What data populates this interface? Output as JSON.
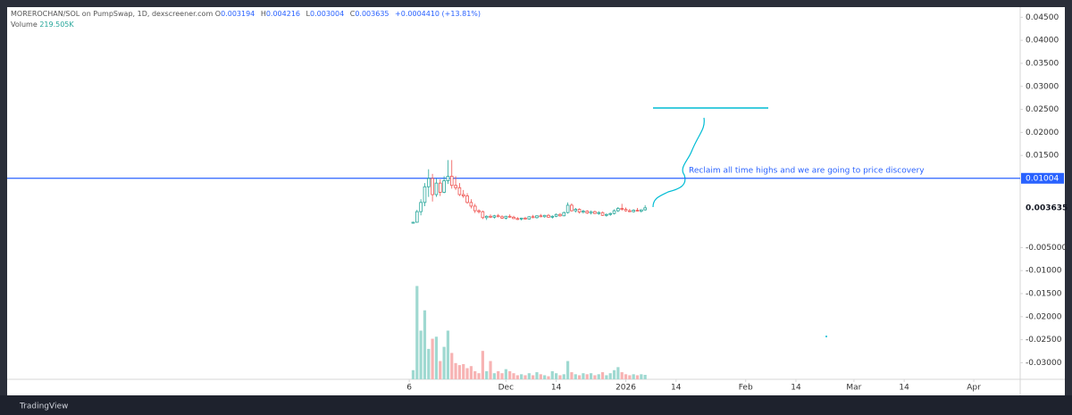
{
  "chart_data": {
    "type": "candlestick",
    "symbol": "MOREROCHAN/SOL on PumpSwap, 1D, dexscreener.com",
    "ohlc_letters": [
      "O",
      "H",
      "L",
      "C"
    ],
    "change": "+0.0004410 (+13.81%)",
    "x": [
      1,
      2,
      3,
      4,
      5,
      6,
      7,
      8,
      9,
      10,
      11,
      12,
      13,
      14,
      15,
      16,
      17,
      18,
      19,
      20,
      21,
      22,
      23,
      24,
      25,
      26,
      27,
      28,
      29,
      30,
      31,
      32,
      33,
      34,
      35,
      36,
      37,
      38,
      39,
      40,
      41,
      42,
      43,
      44,
      45,
      46,
      47,
      48,
      49,
      50,
      51,
      52,
      53,
      54,
      55,
      56,
      57,
      58,
      59,
      60,
      61
    ],
    "open": [
      0.0003,
      0.0005,
      0.0028,
      0.0048,
      0.0082,
      0.01,
      0.0065,
      0.009,
      0.007,
      0.0095,
      0.0105,
      0.0085,
      0.008,
      0.0065,
      0.0062,
      0.0048,
      0.004,
      0.003,
      0.0028,
      0.0015,
      0.0018,
      0.0016,
      0.0019,
      0.0017,
      0.0014,
      0.0018,
      0.0016,
      0.0013,
      0.0012,
      0.0014,
      0.0012,
      0.0017,
      0.0015,
      0.0019,
      0.0017,
      0.002,
      0.0016,
      0.0018,
      0.0022,
      0.0019,
      0.0026,
      0.0042,
      0.003,
      0.0033,
      0.0027,
      0.0029,
      0.0025,
      0.0028,
      0.0024,
      0.0026,
      0.002,
      0.0022,
      0.0024,
      0.003,
      0.0035,
      0.0033,
      0.003,
      0.0028,
      0.0031,
      0.0029,
      0.003194
    ],
    "high": [
      0.0006,
      0.0032,
      0.0055,
      0.009,
      0.012,
      0.011,
      0.01,
      0.0098,
      0.0105,
      0.014,
      0.014,
      0.0105,
      0.009,
      0.0075,
      0.0068,
      0.0055,
      0.0045,
      0.0033,
      0.003,
      0.002,
      0.0022,
      0.0021,
      0.0023,
      0.002,
      0.0019,
      0.0022,
      0.0019,
      0.0016,
      0.0015,
      0.0017,
      0.0018,
      0.0021,
      0.002,
      0.0023,
      0.0021,
      0.0023,
      0.002,
      0.0024,
      0.0025,
      0.0028,
      0.0048,
      0.0046,
      0.0036,
      0.0035,
      0.0032,
      0.0031,
      0.003,
      0.003,
      0.0029,
      0.0028,
      0.0024,
      0.0026,
      0.0033,
      0.0038,
      0.0045,
      0.0037,
      0.0034,
      0.0033,
      0.0036,
      0.0033,
      0.004216
    ],
    "low": [
      0.0002,
      0.0004,
      0.002,
      0.004,
      0.006,
      0.005,
      0.006,
      0.0062,
      0.0068,
      0.0088,
      0.0078,
      0.0075,
      0.0062,
      0.0058,
      0.0045,
      0.0035,
      0.0025,
      0.0024,
      0.0012,
      0.001,
      0.0014,
      0.0013,
      0.0016,
      0.0012,
      0.0011,
      0.0015,
      0.0012,
      0.001,
      0.0009,
      0.0011,
      0.0011,
      0.0014,
      0.0013,
      0.0016,
      0.0015,
      0.0015,
      0.0013,
      0.0016,
      0.0017,
      0.0018,
      0.0024,
      0.0028,
      0.0026,
      0.0024,
      0.0024,
      0.0023,
      0.0022,
      0.0023,
      0.0021,
      0.0019,
      0.0017,
      0.0019,
      0.0022,
      0.0027,
      0.003,
      0.0028,
      0.0027,
      0.0026,
      0.0028,
      0.0026,
      0.003004
    ],
    "close": [
      0.0005,
      0.0028,
      0.0048,
      0.0082,
      0.01,
      0.0065,
      0.009,
      0.007,
      0.0095,
      0.0105,
      0.0085,
      0.008,
      0.0065,
      0.0062,
      0.0048,
      0.004,
      0.003,
      0.0028,
      0.0015,
      0.0018,
      0.0016,
      0.0019,
      0.0017,
      0.0014,
      0.0018,
      0.0016,
      0.0013,
      0.0012,
      0.0014,
      0.0012,
      0.0017,
      0.0015,
      0.0019,
      0.0017,
      0.002,
      0.0016,
      0.0018,
      0.0022,
      0.0019,
      0.0026,
      0.0042,
      0.003,
      0.0033,
      0.0027,
      0.0029,
      0.0025,
      0.0028,
      0.0024,
      0.0026,
      0.002,
      0.0022,
      0.0024,
      0.003,
      0.0035,
      0.0033,
      0.003,
      0.0028,
      0.0031,
      0.0029,
      0.003194,
      0.003635
    ],
    "up_color": "#26a69a",
    "down_color": "#ef5350",
    "volume": {
      "name": "Volume",
      "values": [
        450000,
        4600000,
        2400000,
        3400000,
        1500000,
        2000000,
        2100000,
        900000,
        1600000,
        2400000,
        1300000,
        800000,
        700000,
        750000,
        550000,
        650000,
        400000,
        300000,
        1400000,
        400000,
        900000,
        300000,
        400000,
        300000,
        500000,
        400000,
        300000,
        200000,
        250000,
        200000,
        300000,
        200000,
        350000,
        250000,
        200000,
        150000,
        400000,
        300000,
        200000,
        250000,
        900000,
        350000,
        250000,
        200000,
        300000,
        250000,
        300000,
        200000,
        250000,
        350000,
        200000,
        300000,
        450000,
        600000,
        350000,
        250000,
        200000,
        250000,
        200000,
        250000,
        219505
      ],
      "value_labels": [
        null,
        null,
        null,
        null,
        null,
        null,
        null,
        null,
        null,
        null,
        null,
        null,
        null,
        null,
        null,
        null,
        null,
        null,
        null,
        null,
        null,
        null,
        null,
        null,
        null,
        null,
        null,
        null,
        null,
        null,
        null,
        null,
        null,
        null,
        null,
        null,
        null,
        null,
        null,
        null,
        null,
        null,
        null,
        null,
        null,
        null,
        null,
        null,
        null,
        null,
        null,
        null,
        null,
        null,
        null,
        null,
        null,
        null,
        null,
        null,
        "219.505K"
      ],
      "up_color": "#9fd9d1",
      "down_color": "#f7b3b3"
    },
    "price_line": 0.01004,
    "price_line_color": "#2962ff",
    "annotation": "Reclaim all time highs and we are going to price discovery",
    "xlim": [
      -104,
      158
    ],
    "xticks": [
      {
        "value": 0,
        "label": "6"
      },
      {
        "value": 25,
        "label": "Dec"
      },
      {
        "value": 38,
        "label": "14"
      },
      {
        "value": 56,
        "label": "2026"
      },
      {
        "value": 69,
        "label": "14"
      },
      {
        "value": 87,
        "label": "Feb"
      },
      {
        "value": 100,
        "label": "14"
      },
      {
        "value": 115,
        "label": "Mar"
      },
      {
        "value": 128,
        "label": "14"
      },
      {
        "value": 146,
        "label": "Apr"
      }
    ],
    "ylim": [
      -0.0336,
      0.0472
    ],
    "yticks": [
      {
        "value": 0.045,
        "label": "0.04500"
      },
      {
        "value": 0.04,
        "label": "0.04000"
      },
      {
        "value": 0.035,
        "label": "0.03500"
      },
      {
        "value": 0.03,
        "label": "0.03000"
      },
      {
        "value": 0.025,
        "label": "0.02500"
      },
      {
        "value": 0.02,
        "label": "0.02000"
      },
      {
        "value": 0.015,
        "label": "0.01500"
      },
      {
        "value": -0.005,
        "label": "-0.005000"
      },
      {
        "value": -0.01,
        "label": "-0.01000"
      },
      {
        "value": -0.015,
        "label": "-0.01500"
      },
      {
        "value": -0.02,
        "label": "-0.02000"
      },
      {
        "value": -0.025,
        "label": "-0.02500"
      },
      {
        "value": -0.03,
        "label": "-0.03000"
      }
    ],
    "grid": false,
    "footer": "TradingView"
  }
}
